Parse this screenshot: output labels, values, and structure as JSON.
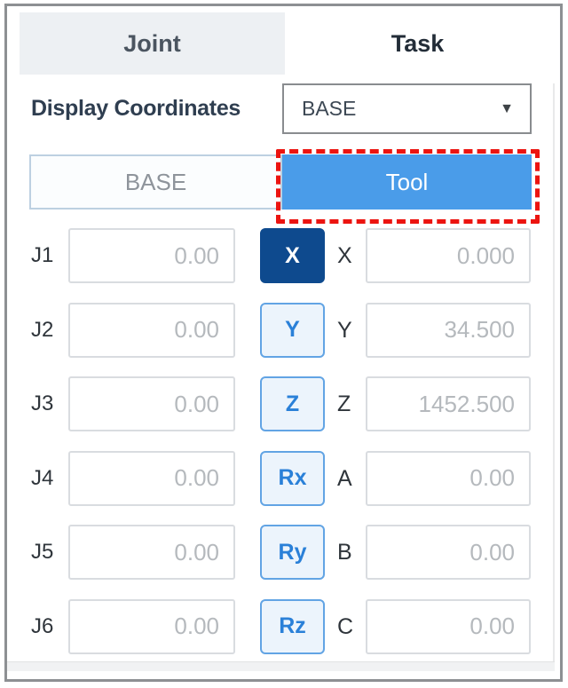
{
  "tabs": [
    {
      "label": "Joint",
      "active": false
    },
    {
      "label": "Task",
      "active": true
    }
  ],
  "display_coordinates": {
    "label": "Display Coordinates",
    "value": "BASE"
  },
  "icons": {
    "dropdown_arrow": "▼"
  },
  "reference_toggle": {
    "buttons": [
      {
        "label": "BASE",
        "selected": false
      },
      {
        "label": "Tool",
        "selected": true,
        "annotated": true
      }
    ]
  },
  "jog": {
    "rows": [
      {
        "joint_label": "J1",
        "joint_value": "0.00",
        "axis_button": "X",
        "axis_selected": true,
        "task_label": "X",
        "task_value": "0.000"
      },
      {
        "joint_label": "J2",
        "joint_value": "0.00",
        "axis_button": "Y",
        "axis_selected": false,
        "task_label": "Y",
        "task_value": "34.500"
      },
      {
        "joint_label": "J3",
        "joint_value": "0.00",
        "axis_button": "Z",
        "axis_selected": false,
        "task_label": "Z",
        "task_value": "1452.500"
      },
      {
        "joint_label": "J4",
        "joint_value": "0.00",
        "axis_button": "Rx",
        "axis_selected": false,
        "task_label": "A",
        "task_value": "0.00"
      },
      {
        "joint_label": "J5",
        "joint_value": "0.00",
        "axis_button": "Ry",
        "axis_selected": false,
        "task_label": "B",
        "task_value": "0.00"
      },
      {
        "joint_label": "J6",
        "joint_value": "0.00",
        "axis_button": "Rz",
        "axis_selected": false,
        "task_label": "C",
        "task_value": "0.00"
      }
    ]
  },
  "colors": {
    "active_axis_bg": "#0e4a8e",
    "axis_button_border": "#62a4e4",
    "axis_button_text": "#2a80d8",
    "tool_button_bg": "#4a9ce9",
    "annotation_dashed_red": "#ec1410",
    "inactive_tab_bg": "#edf0f3",
    "value_text": "#b5b9bd",
    "frame_border": "#8d9093"
  }
}
